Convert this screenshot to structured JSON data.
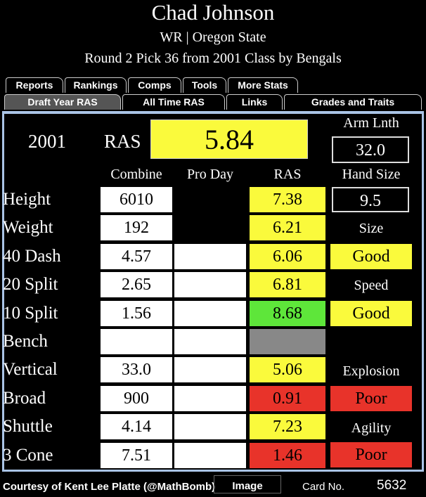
{
  "header": {
    "name": "Chad Johnson",
    "position_school": "WR | Oregon State",
    "draft_info": "Round 2 Pick 36 from 2001 Class by Bengals"
  },
  "tabs_row1": [
    "Reports",
    "Rankings",
    "Comps",
    "Tools",
    "More Stats"
  ],
  "tabs_row2": [
    "Draft Year RAS",
    "All Time RAS",
    "Links",
    "Grades and Traits"
  ],
  "active_tab": "Draft Year RAS",
  "summary": {
    "year": "2001",
    "ras_label": "RAS",
    "ras_value": "5.84",
    "arm_label": "Arm Lnth",
    "arm_value": "32.0",
    "hand_label": "Hand Size",
    "hand_value": "9.5"
  },
  "columns": {
    "combine": "Combine",
    "pro_day": "Pro Day",
    "ras": "RAS"
  },
  "rows": [
    {
      "label": "Height",
      "combine": "6010",
      "ras": "7.38"
    },
    {
      "label": "Weight",
      "combine": "192",
      "ras": "6.21"
    },
    {
      "label": "40 Dash",
      "combine": "4.57",
      "ras": "6.06"
    },
    {
      "label": "20 Split",
      "combine": "2.65",
      "ras": "6.81"
    },
    {
      "label": "10 Split",
      "combine": "1.56",
      "ras": "8.68"
    },
    {
      "label": "Bench",
      "combine": "",
      "ras": ""
    },
    {
      "label": "Vertical",
      "combine": "33.0",
      "ras": "5.06"
    },
    {
      "label": "Broad",
      "combine": "900",
      "ras": "0.91"
    },
    {
      "label": "Shuttle",
      "combine": "4.14",
      "ras": "7.23"
    },
    {
      "label": "3 Cone",
      "combine": "7.51",
      "ras": "1.46"
    }
  ],
  "grades": {
    "size_label": "Size",
    "speed_label": "Speed",
    "speed_grade": "Good",
    "speed_grade2": "Good",
    "explosion_label": "Explosion",
    "explosion_grade": "Poor",
    "agility_label": "Agility",
    "agility_grade": "Poor"
  },
  "colors": {
    "yellow": "#fafa3c",
    "green": "#5ee63a",
    "red": "#e8332a",
    "gray": "#888888"
  },
  "footer": {
    "credit": "Courtesy of Kent Lee Platte (@MathBomb)",
    "image_button": "Image",
    "card_label": "Card No.",
    "card_number": "5632"
  }
}
